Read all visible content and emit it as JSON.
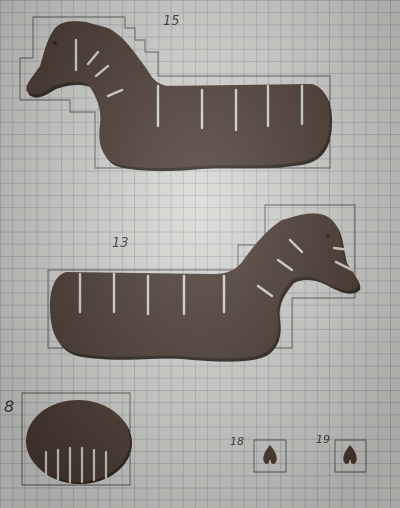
{
  "labels": {
    "piece_15": "15",
    "piece_13": "13",
    "piece_8": "8",
    "piece_18": "18",
    "piece_19": "19"
  },
  "colors": {
    "cardboard": "#4a3a31",
    "cardboard_edge": "#2d231d",
    "pencil": "#5a5a5a",
    "grid_paper": "#d8d8d4"
  }
}
